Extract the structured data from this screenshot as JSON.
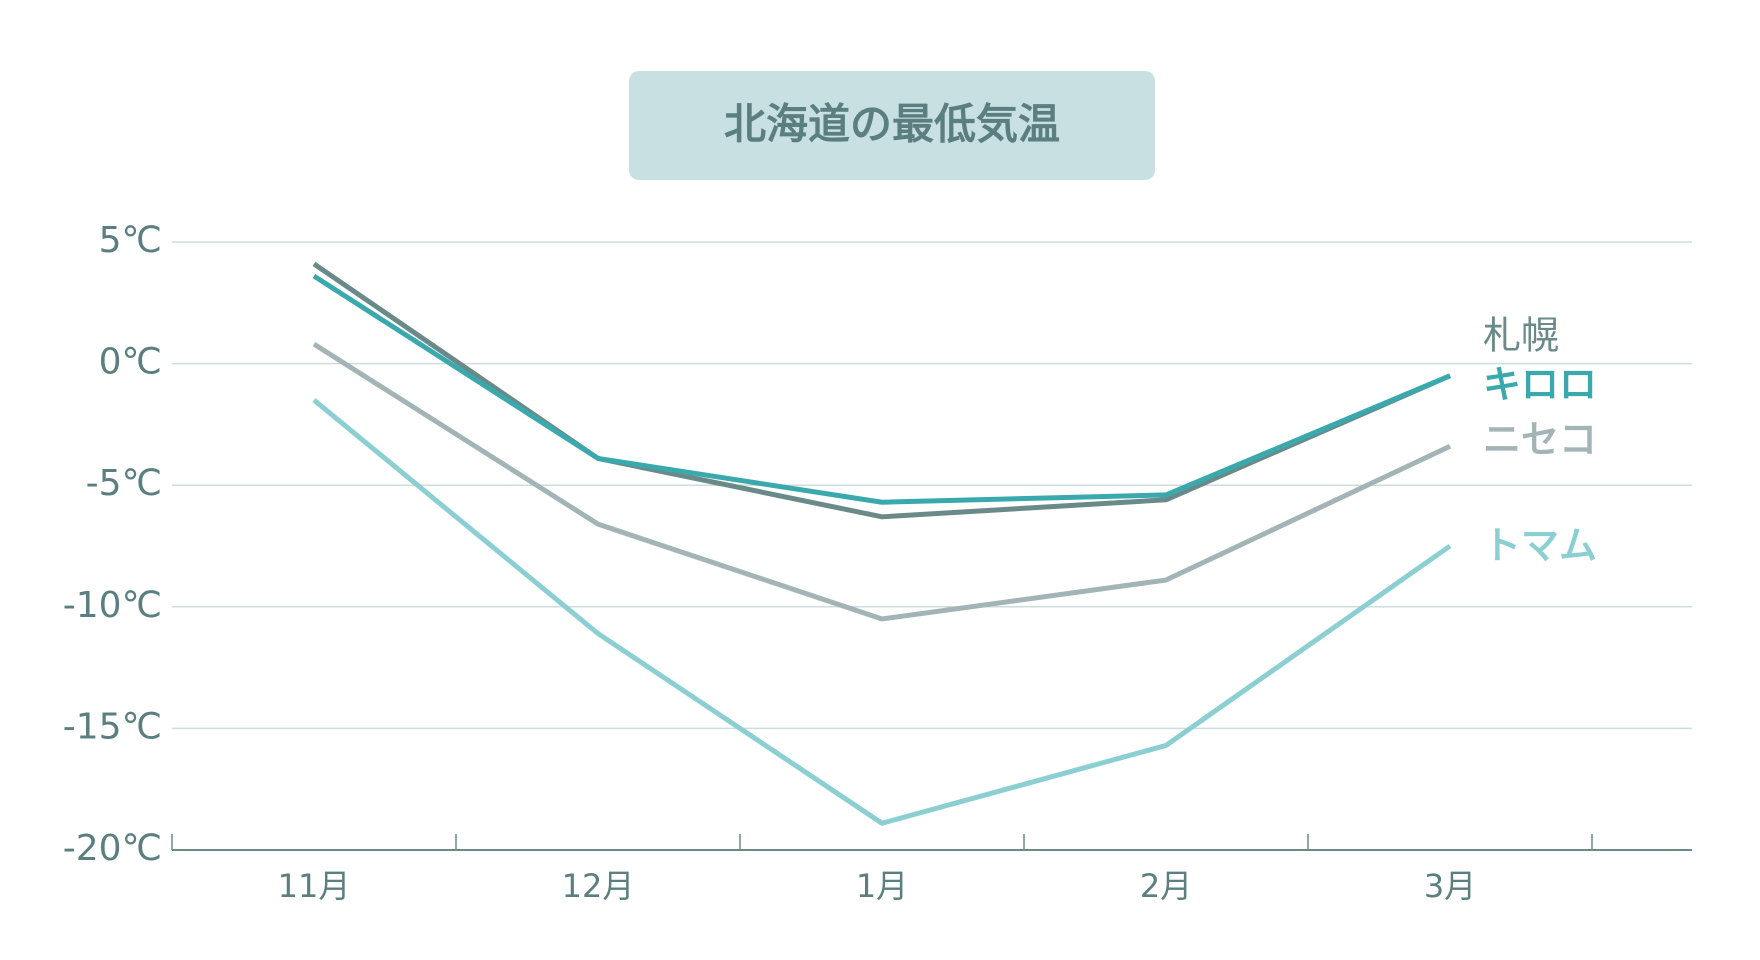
{
  "chart_data": {
    "type": "line",
    "title": "北海道の最低気温",
    "categories": [
      "11月",
      "12月",
      "1月",
      "2月",
      "3月"
    ],
    "series": [
      {
        "name": "札幌",
        "color": "#6a8a8a",
        "values": [
          4.1,
          -3.9,
          -6.3,
          -5.6,
          -0.5
        ]
      },
      {
        "name": "キロロ",
        "color": "#3aa9ad",
        "values": [
          3.6,
          -3.9,
          -5.7,
          -5.4,
          -0.5
        ]
      },
      {
        "name": "ニセコ",
        "color": "#a3b4b6",
        "values": [
          0.8,
          -6.6,
          -10.5,
          -8.9,
          -3.4
        ]
      },
      {
        "name": "トマム",
        "color": "#8bcfd2",
        "values": [
          -1.5,
          -11.1,
          -18.9,
          -15.7,
          -7.5
        ]
      }
    ],
    "ylim": [
      -20,
      5
    ],
    "yticks": [
      {
        "value": -20,
        "label": "-20℃"
      },
      {
        "value": -15,
        "label": "-15℃"
      },
      {
        "value": -10,
        "label": "-10℃"
      },
      {
        "value": -5,
        "label": "-5℃"
      },
      {
        "value": 0,
        "label": "0℃"
      },
      {
        "value": 5,
        "label": "5℃"
      }
    ],
    "grid": true
  }
}
